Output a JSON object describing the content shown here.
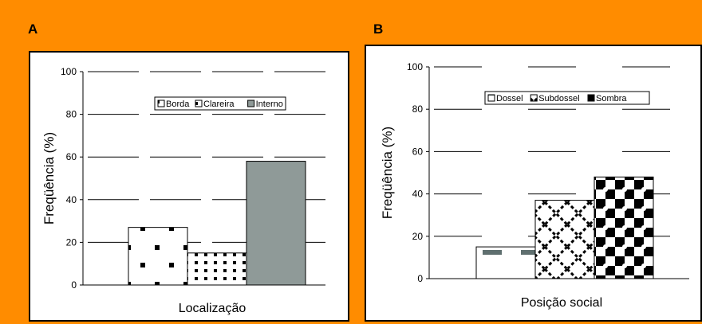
{
  "panels": {
    "a_letter": "A",
    "b_letter": "B"
  },
  "colors": {
    "background": "#ff8c00",
    "interno": "#8f9a98",
    "pattern": "#000000",
    "dossel_dash": "#5f6f6f"
  },
  "chart_data": [
    {
      "type": "bar",
      "panel": "A",
      "title": "",
      "xlabel": "Localização",
      "ylabel": "Freqüência (%)",
      "ylim": [
        0,
        100
      ],
      "yticks": [
        "0",
        "20",
        "40",
        "60",
        "80",
        "100"
      ],
      "grid": true,
      "legend_position": "top-center",
      "series": [
        {
          "name": "Borda",
          "values": [
            27
          ],
          "pattern": "sparse-dots"
        },
        {
          "name": "Clareira",
          "values": [
            15
          ],
          "pattern": "dense-dots"
        },
        {
          "name": "Interno",
          "values": [
            58
          ],
          "pattern": "solid-gray"
        }
      ]
    },
    {
      "type": "bar",
      "panel": "B",
      "title": "",
      "xlabel": "Posição social",
      "ylabel": "Freqüência (%)",
      "ylim": [
        0,
        100
      ],
      "yticks": [
        "0",
        "20",
        "40",
        "60",
        "80",
        "100"
      ],
      "grid": true,
      "legend_position": "top-center",
      "series": [
        {
          "name": "Dossel",
          "values": [
            15
          ],
          "pattern": "dashes"
        },
        {
          "name": "Subdossel",
          "values": [
            37
          ],
          "pattern": "diagonal-cross"
        },
        {
          "name": "Sombra",
          "values": [
            48
          ],
          "pattern": "checker"
        }
      ]
    }
  ]
}
